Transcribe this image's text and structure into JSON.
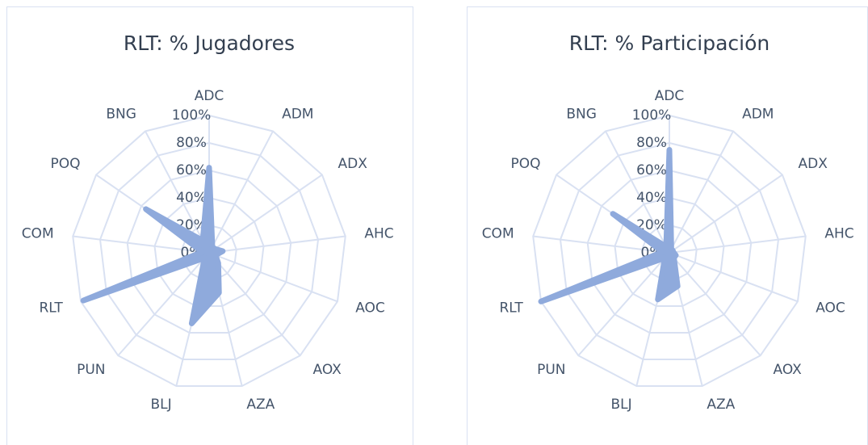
{
  "chart_data": [
    {
      "type": "radar",
      "title": "RLT: % Jugadores",
      "categories": [
        "ADC",
        "ADM",
        "ADX",
        "AHC",
        "AOC",
        "AOX",
        "AZA",
        "BLJ",
        "PUN",
        "RLT",
        "COM",
        "POQ",
        "BNG"
      ],
      "series": [
        {
          "color": "#8faadc",
          "values": [
            62,
            5,
            5,
            10,
            5,
            10,
            30,
            53,
            5,
            98,
            5,
            56,
            10
          ]
        }
      ],
      "ylim": [
        0,
        100
      ],
      "yticks": [
        {
          "value": 0,
          "label": "0%"
        },
        {
          "value": 20,
          "label": "20%"
        },
        {
          "value": 40,
          "label": "40%"
        },
        {
          "value": 60,
          "label": "60%"
        },
        {
          "value": 80,
          "label": "80%"
        },
        {
          "value": 100,
          "label": "100%"
        }
      ],
      "grid": true
    },
    {
      "type": "radar",
      "title": "RLT: % Participación",
      "categories": [
        "ADC",
        "ADM",
        "ADX",
        "AHC",
        "AOC",
        "AOX",
        "AZA",
        "BLJ",
        "PUN",
        "RLT",
        "COM",
        "POQ",
        "BNG"
      ],
      "series": [
        {
          "color": "#8faadc",
          "values": [
            75,
            3,
            3,
            3,
            5,
            5,
            25,
            35,
            5,
            100,
            5,
            50,
            5
          ]
        }
      ],
      "ylim": [
        0,
        100
      ],
      "yticks": [
        {
          "value": 0,
          "label": "0%"
        },
        {
          "value": 20,
          "label": "20%"
        },
        {
          "value": 40,
          "label": "40%"
        },
        {
          "value": 60,
          "label": "60%"
        },
        {
          "value": 80,
          "label": "80%"
        },
        {
          "value": 100,
          "label": "100%"
        }
      ],
      "grid": true
    }
  ]
}
